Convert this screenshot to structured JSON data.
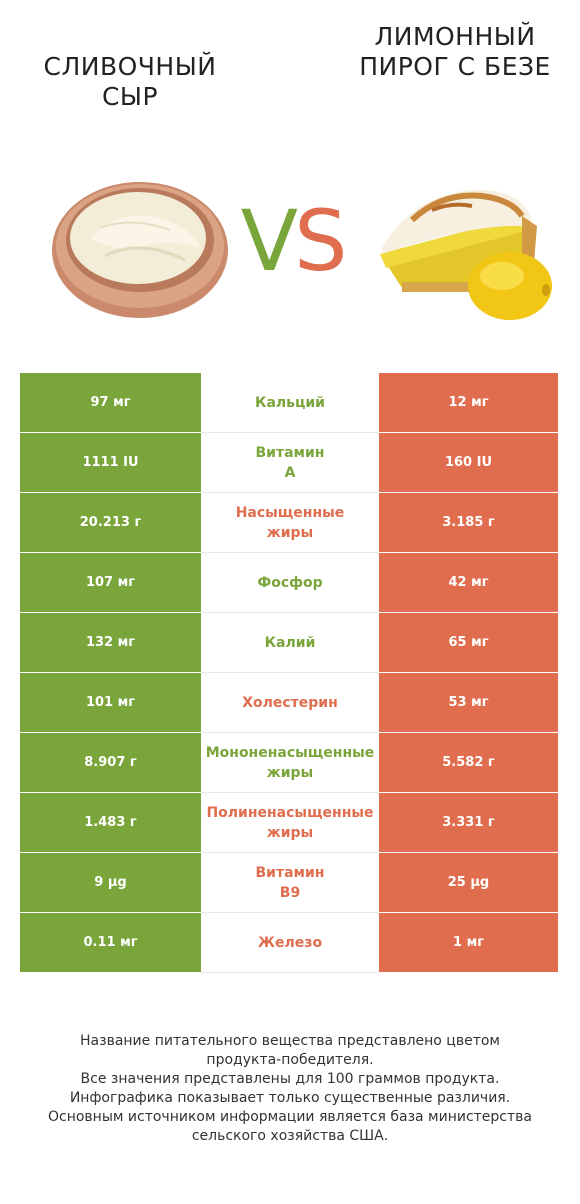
{
  "header": {
    "left_title": "СЛИВОЧНЫЙ СЫР",
    "right_title": "ЛИМОННЫЙ ПИРОГ С БЕЗЕ",
    "vs_v": "V",
    "vs_s": "S"
  },
  "colors": {
    "left": "#7aa53a",
    "right": "#e06d4e"
  },
  "rows": [
    {
      "left": "97 мг",
      "name": "Кальций",
      "right": "12 мг",
      "winner": "left"
    },
    {
      "left": "1111 IU",
      "name": "Витамин A",
      "right": "160 IU",
      "winner": "left"
    },
    {
      "left": "20.213 г",
      "name": "Насыщенные жиры",
      "right": "3.185 г",
      "winner": "right"
    },
    {
      "left": "107 мг",
      "name": "Фосфор",
      "right": "42 мг",
      "winner": "left"
    },
    {
      "left": "132 мг",
      "name": "Калий",
      "right": "65 мг",
      "winner": "left"
    },
    {
      "left": "101 мг",
      "name": "Холестерин",
      "right": "53 мг",
      "winner": "right"
    },
    {
      "left": "8.907 г",
      "name": "Мононенасыщенные жиры",
      "right": "5.582 г",
      "winner": "left"
    },
    {
      "left": "1.483 г",
      "name": "Полиненасыщенные жиры",
      "right": "3.331 г",
      "winner": "right"
    },
    {
      "left": "9 µg",
      "name": "Витамин B9",
      "right": "25 µg",
      "winner": "right"
    },
    {
      "left": "0.11 мг",
      "name": "Железо",
      "right": "1 мг",
      "winner": "right"
    }
  ],
  "footer": {
    "line1": "Название питательного вещества представлено цветом",
    "line2": "продукта-победителя.",
    "line3": "Все значения представлены для 100 граммов продукта.",
    "line4": "Инфографика показывает только существенные различия.",
    "line5": "Основным источником информации является база министерства",
    "line6": "сельского хозяйства США."
  }
}
